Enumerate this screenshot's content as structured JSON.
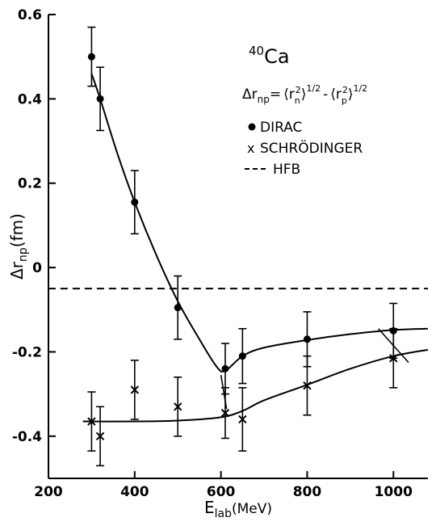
{
  "chart_data": {
    "type": "scatter",
    "title": "",
    "xlabel": "E",
    "xlabel_sub": "lab",
    "xlabel_unit": "(MeV)",
    "ylabel": "Δr",
    "ylabel_sub": "np",
    "ylabel_unit": "(fm)",
    "xlim": [
      200,
      1080
    ],
    "ylim": [
      -0.5,
      0.6
    ],
    "x_ticks": [
      200,
      400,
      600,
      800,
      1000
    ],
    "x_tick_labels": [
      "200",
      "400",
      "600",
      "800",
      "1000"
    ],
    "y_ticks": [
      -0.4,
      -0.2,
      0,
      0.2,
      0.4,
      0.6
    ],
    "y_tick_labels": [
      "-0.4",
      "-0.2",
      "0",
      "0.2",
      "0.4",
      "0.6"
    ],
    "grid": false,
    "annotations": {
      "nucleus_mass": "40",
      "nucleus_symbol": "Ca",
      "formula_lhs": "Δr",
      "formula_lhs_sub": "np",
      "formula_eq": "=",
      "formula_term1": "⟨r",
      "formula_term1_sub": "n",
      "formula_term1_sup": "2",
      "formula_term1_close": "⟩",
      "formula_term1_pow": "1/2",
      "formula_minus": "-",
      "formula_term2": "⟨r",
      "formula_term2_sub": "p",
      "formula_term2_sup": "2",
      "formula_term2_close": "⟩",
      "formula_term2_pow": "1/2"
    },
    "legend_position": "top-right",
    "legend": [
      {
        "marker": "•",
        "label": "DIRAC"
      },
      {
        "marker": "x",
        "label": "SCHRÖDINGER"
      },
      {
        "marker": "---",
        "label": "HFB"
      }
    ],
    "series": [
      {
        "name": "DIRAC",
        "marker": "dot",
        "points": [
          {
            "x": 300,
            "y": 0.5,
            "err": 0.07
          },
          {
            "x": 320,
            "y": 0.4,
            "err": 0.075
          },
          {
            "x": 400,
            "y": 0.155,
            "err": 0.075
          },
          {
            "x": 500,
            "y": -0.095,
            "err": 0.075
          },
          {
            "x": 610,
            "y": -0.24,
            "err": 0.06
          },
          {
            "x": 650,
            "y": -0.21,
            "err": 0.065
          },
          {
            "x": 800,
            "y": -0.17,
            "err": 0.065
          },
          {
            "x": 1000,
            "y": -0.15,
            "err": 0.065
          }
        ],
        "curve": [
          [
            300,
            0.46
          ],
          [
            320,
            0.4
          ],
          [
            360,
            0.27
          ],
          [
            400,
            0.155
          ],
          [
            450,
            0.03
          ],
          [
            500,
            -0.08
          ],
          [
            550,
            -0.17
          ],
          [
            590,
            -0.235
          ],
          [
            610,
            -0.245
          ],
          [
            650,
            -0.21
          ],
          [
            700,
            -0.19
          ],
          [
            800,
            -0.172
          ],
          [
            900,
            -0.158
          ],
          [
            1000,
            -0.148
          ],
          [
            1080,
            -0.145
          ]
        ]
      },
      {
        "name": "SCHRÖDINGER",
        "marker": "x",
        "points": [
          {
            "x": 300,
            "y": -0.365,
            "err": 0.07
          },
          {
            "x": 320,
            "y": -0.4,
            "err": 0.07
          },
          {
            "x": 400,
            "y": -0.29,
            "err": 0.07
          },
          {
            "x": 500,
            "y": -0.33,
            "err": 0.07
          },
          {
            "x": 610,
            "y": -0.345,
            "err": 0.06
          },
          {
            "x": 650,
            "y": -0.36,
            "err": 0.075
          },
          {
            "x": 800,
            "y": -0.28,
            "err": 0.07
          },
          {
            "x": 1000,
            "y": -0.215,
            "err": 0.07
          }
        ],
        "curve": [
          [
            280,
            -0.365
          ],
          [
            400,
            -0.365
          ],
          [
            500,
            -0.363
          ],
          [
            600,
            -0.355
          ],
          [
            650,
            -0.34
          ],
          [
            700,
            -0.315
          ],
          [
            800,
            -0.278
          ],
          [
            900,
            -0.24
          ],
          [
            1000,
            -0.21
          ],
          [
            1080,
            -0.195
          ]
        ]
      },
      {
        "name": "HFB",
        "marker": "dashed",
        "points": [],
        "curve": [
          [
            200,
            -0.05
          ],
          [
            1080,
            -0.05
          ]
        ]
      }
    ],
    "connector_ticks": [
      {
        "x1": 600,
        "y1": -0.255,
        "x2": 613,
        "y2": -0.335
      },
      {
        "x1": 965,
        "y1": -0.145,
        "x2": 1035,
        "y2": -0.225
      }
    ]
  }
}
